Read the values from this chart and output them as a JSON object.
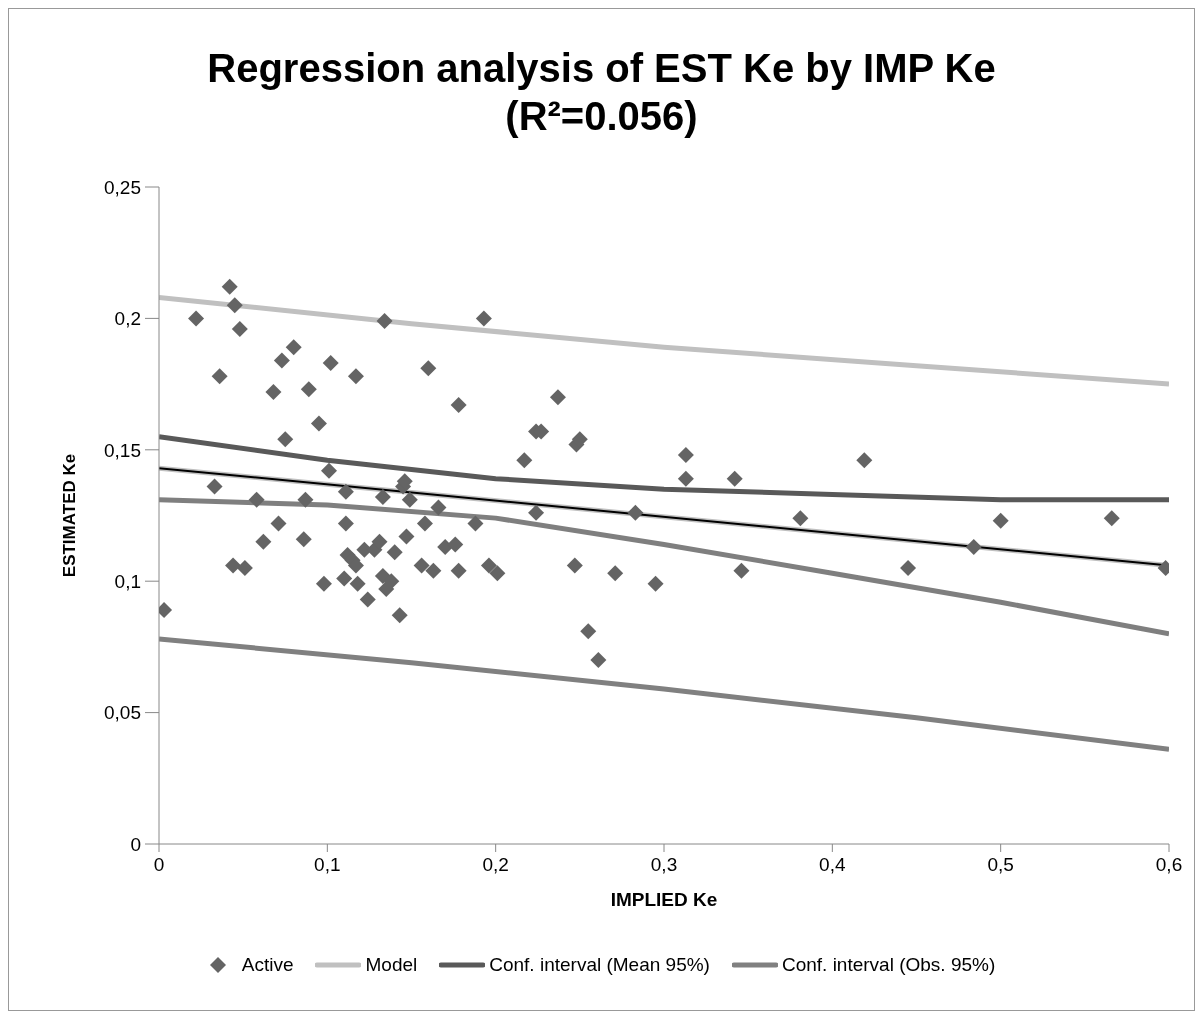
{
  "chart_data": {
    "type": "scatter",
    "title": "Regression analysis of EST Ke by IMP Ke\n(R²=0.056)",
    "xlabel": "IMPLIED Ke",
    "ylabel": "ESTIMATED Ke",
    "xlim": [
      0,
      0.6
    ],
    "xticks": [
      0,
      {
        "value": 0.1,
        "label": "0,1"
      },
      {
        "value": 0.2,
        "label": "0,2"
      },
      {
        "value": 0.3,
        "label": "0,3"
      },
      {
        "value": 0.4,
        "label": "0,4"
      },
      {
        "value": 0.5,
        "label": "0,5"
      },
      {
        "value": 0.6,
        "label": "0,6"
      }
    ],
    "ylim": [
      0,
      0.25
    ],
    "yticks": [
      0,
      {
        "value": 0.05,
        "label": "0,05"
      },
      {
        "value": 0.1,
        "label": "0,1"
      },
      {
        "value": 0.15,
        "label": "0,15"
      },
      {
        "value": 0.2,
        "label": "0,2"
      },
      {
        "value": 0.25,
        "label": "0,25"
      }
    ],
    "grid": false,
    "legend": "bottom",
    "series": [
      {
        "name": "Active",
        "marker": "diamond",
        "color": "#646464",
        "x": [
          0.003,
          0.022,
          0.033,
          0.036,
          0.042,
          0.045,
          0.044,
          0.048,
          0.051,
          0.058,
          0.062,
          0.068,
          0.071,
          0.073,
          0.075,
          0.08,
          0.086,
          0.087,
          0.089,
          0.095,
          0.098,
          0.101,
          0.102,
          0.11,
          0.111,
          0.111,
          0.112,
          0.115,
          0.117,
          0.118,
          0.117,
          0.122,
          0.124,
          0.128,
          0.131,
          0.133,
          0.133,
          0.134,
          0.135,
          0.138,
          0.14,
          0.143,
          0.145,
          0.146,
          0.147,
          0.149,
          0.156,
          0.158,
          0.16,
          0.163,
          0.166,
          0.17,
          0.176,
          0.178,
          0.178,
          0.188,
          0.193,
          0.196,
          0.201,
          0.217,
          0.224,
          0.224,
          0.227,
          0.237,
          0.247,
          0.248,
          0.25,
          0.255,
          0.261,
          0.271,
          0.283,
          0.295,
          0.313,
          0.313,
          0.342,
          0.346,
          0.381,
          0.419,
          0.445,
          0.484,
          0.5,
          0.566,
          0.598
        ],
        "values": [
          0.089,
          0.2,
          0.136,
          0.178,
          0.212,
          0.205,
          0.106,
          0.196,
          0.105,
          0.131,
          0.115,
          0.172,
          0.122,
          0.184,
          0.154,
          0.189,
          0.116,
          0.131,
          0.173,
          0.16,
          0.099,
          0.142,
          0.183,
          0.101,
          0.134,
          0.122,
          0.11,
          0.108,
          0.178,
          0.099,
          0.106,
          0.112,
          0.093,
          0.112,
          0.115,
          0.102,
          0.132,
          0.199,
          0.097,
          0.1,
          0.111,
          0.087,
          0.136,
          0.138,
          0.117,
          0.131,
          0.106,
          0.122,
          0.181,
          0.104,
          0.128,
          0.113,
          0.114,
          0.167,
          0.104,
          0.122,
          0.2,
          0.106,
          0.103,
          0.146,
          0.126,
          0.157,
          0.157,
          0.17,
          0.106,
          0.152,
          0.154,
          0.081,
          0.07,
          0.103,
          0.126,
          0.099,
          0.148,
          0.139,
          0.139,
          0.104,
          0.124,
          0.146,
          0.105,
          0.113,
          0.123,
          0.124,
          0.105
        ]
      },
      {
        "type": "line",
        "name": "Model",
        "color": "#c0c0c0",
        "x": [
          0,
          0.6
        ],
        "values": [
          0.143,
          0.106
        ]
      },
      {
        "type": "line",
        "color": "#000000",
        "x": [
          0,
          0.6
        ],
        "values": [
          0.143,
          0.106
        ]
      },
      {
        "type": "line",
        "color": "#c0c0c0",
        "x": [
          0,
          0.15,
          0.3,
          0.45,
          0.6
        ],
        "values": [
          0.208,
          0.198,
          0.189,
          0.182,
          0.175
        ]
      },
      {
        "type": "line",
        "name": "Conf. interval (Mean 95%)",
        "color": "#595959",
        "x": [
          0,
          0.1,
          0.2,
          0.3,
          0.4,
          0.5,
          0.6
        ],
        "values": [
          0.155,
          0.146,
          0.139,
          0.135,
          0.133,
          0.131,
          0.131
        ]
      },
      {
        "type": "line",
        "color": "#7f7f7f",
        "x": [
          0,
          0.1,
          0.2,
          0.3,
          0.4,
          0.5,
          0.6
        ],
        "values": [
          0.131,
          0.129,
          0.124,
          0.114,
          0.103,
          0.092,
          0.08
        ]
      },
      {
        "type": "line",
        "name": "Conf. interval (Obs. 95%)",
        "color": "#808080",
        "x": [
          0,
          0.15,
          0.3,
          0.45,
          0.6
        ],
        "values": [
          0.078,
          0.069,
          0.059,
          0.048,
          0.036
        ]
      }
    ]
  }
}
